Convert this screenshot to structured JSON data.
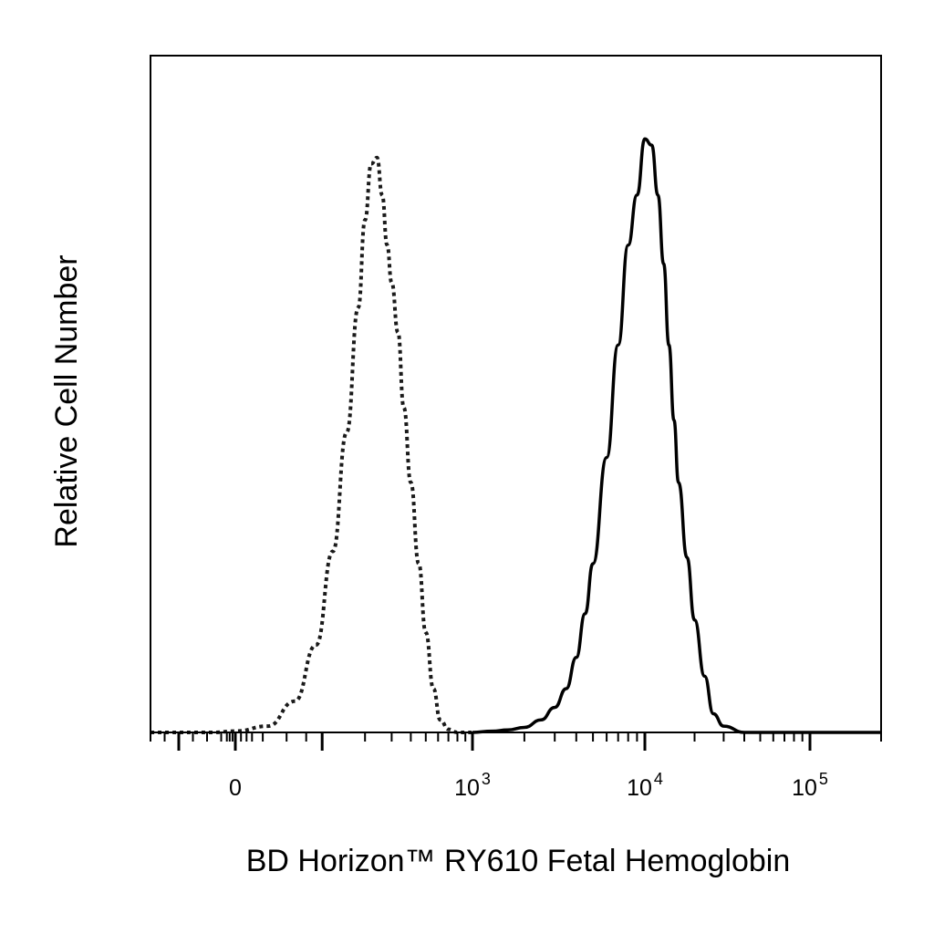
{
  "chart_data": {
    "type": "line",
    "xlabel": "BD Horizon™ RY610 Fetal Hemoglobin",
    "ylabel": "Relative Cell Number",
    "x_scale": "biexponential",
    "xlim": [
      -150,
      200000
    ],
    "ylim": [
      0,
      100
    ],
    "grid": false,
    "legend": "none",
    "x_tick_labels": [
      {
        "value": 0,
        "base": "0",
        "exp": ""
      },
      {
        "value": 1000,
        "base": "10",
        "exp": "3"
      },
      {
        "value": 10000,
        "base": "10",
        "exp": "4"
      },
      {
        "value": 100000,
        "base": "10",
        "exp": "5"
      }
    ],
    "series": [
      {
        "style": "dotted",
        "color": "#1a1a1a",
        "x": [
          -150,
          -40,
          0,
          30,
          60,
          90,
          120,
          150,
          180,
          200,
          220,
          240,
          260,
          280,
          300,
          330,
          360,
          400,
          450,
          500,
          560,
          620,
          700,
          800,
          900,
          1000
        ],
        "y": [
          0,
          0,
          0.2,
          1,
          5,
          14,
          29,
          48,
          68,
          82,
          91,
          92,
          86,
          78,
          72,
          64,
          52,
          40,
          27,
          16,
          7,
          2,
          0.5,
          0,
          0,
          0
        ]
      },
      {
        "style": "solid",
        "color": "#000000",
        "x": [
          1000,
          1300,
          1600,
          2000,
          2500,
          3000,
          3500,
          4000,
          4500,
          5000,
          6000,
          7000,
          8000,
          9000,
          10000,
          11000,
          12000,
          13000,
          14000,
          15000,
          16000,
          18000,
          20000,
          23000,
          26000,
          30000,
          40000,
          60000,
          200000
        ],
        "y": [
          0,
          0.2,
          0.4,
          0.8,
          2,
          4,
          7,
          12,
          19,
          27,
          44,
          62,
          78,
          86,
          95,
          94,
          86,
          75,
          62,
          50,
          40,
          28,
          18,
          9,
          3,
          1,
          0,
          0,
          0
        ]
      }
    ]
  }
}
